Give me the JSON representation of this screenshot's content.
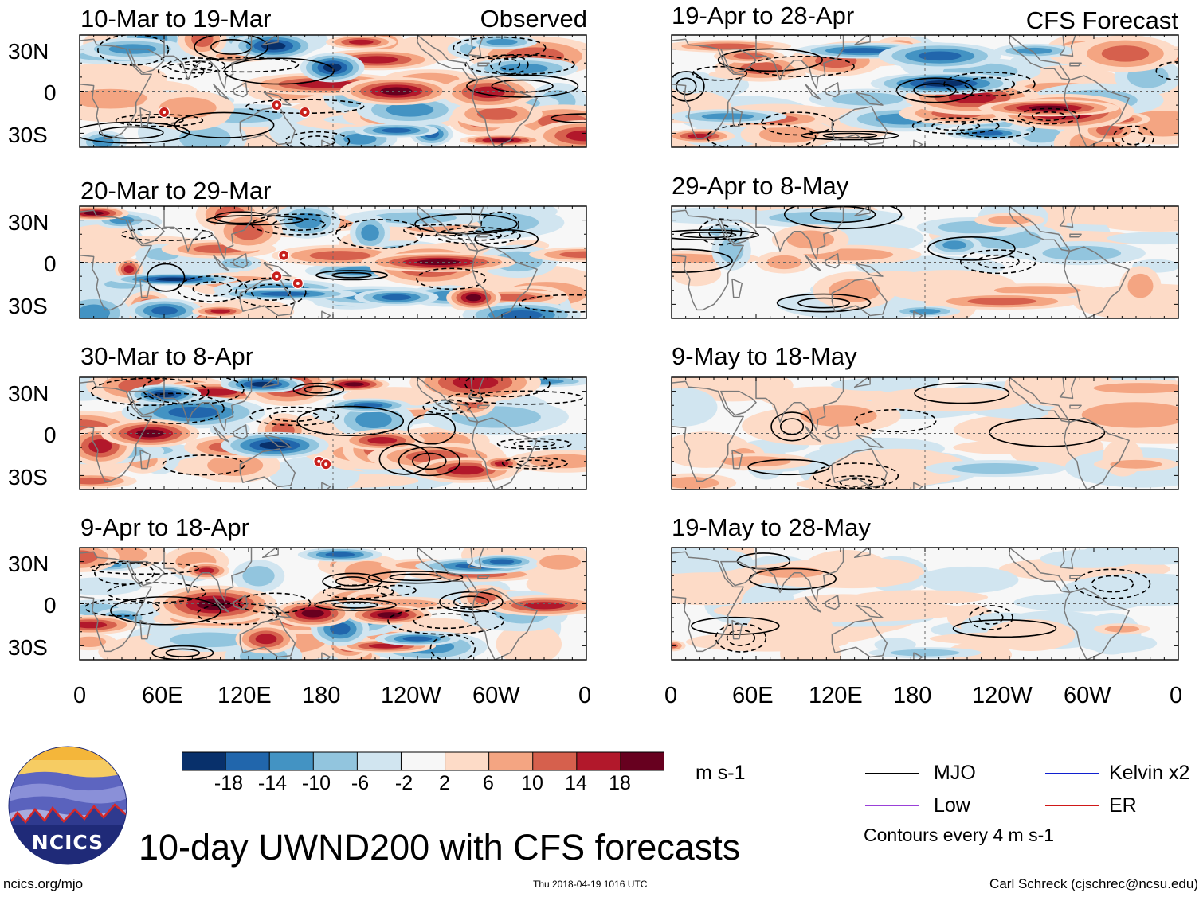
{
  "colors": {
    "scale": [
      "#08306b",
      "#2166ac",
      "#4393c3",
      "#92c5de",
      "#d1e5f0",
      "#f7f7f7",
      "#fddbc7",
      "#f4a582",
      "#d6604d",
      "#b2182b",
      "#67001f"
    ],
    "land_outline": "#7a7a7a",
    "mjo": "#000000",
    "kelvin": "#1020d0",
    "low": "#9a40d8",
    "er": "#d01818"
  },
  "chart_data": {
    "type": "heatmap",
    "title": "10-day UWND200 with CFS forecasts",
    "variable": "200-hPa zonal wind anomaly",
    "units": "m s-1",
    "columns": [
      {
        "id": "observed",
        "header": "Observed",
        "panels": [
          "10-Mar to 19-Mar",
          "20-Mar to 29-Mar",
          "30-Mar to 8-Apr",
          "9-Apr to 18-Apr"
        ]
      },
      {
        "id": "forecast",
        "header": "CFS Forecast",
        "panels": [
          "19-Apr to 28-Apr",
          "29-Apr to 8-May",
          "9-May to 18-May",
          "19-May to 28-May"
        ]
      }
    ],
    "lat_ticks": [
      "30N",
      "0",
      "30S"
    ],
    "lat_range": [
      -40,
      40
    ],
    "lon_ticks": [
      "0",
      "60E",
      "120E",
      "180",
      "120W",
      "60W",
      "0"
    ],
    "lon_range": [
      0,
      360
    ],
    "colorbar": {
      "ticks": [
        "-18",
        "-14",
        "-10",
        "-6",
        "-2",
        "2",
        "6",
        "10",
        "14",
        "18"
      ],
      "units": "m s-1"
    },
    "legend": {
      "items": [
        {
          "label": "MJO",
          "color": "#000000"
        },
        {
          "label": "Kelvin x2",
          "color": "#1020d0"
        },
        {
          "label": "Low",
          "color": "#9a40d8"
        },
        {
          "label": "ER",
          "color": "#d01818"
        }
      ],
      "note": "Contours every 4 m s-1"
    },
    "cyclone_markers": [
      {
        "panel": 0,
        "lon": 60,
        "lat": -15
      },
      {
        "panel": 0,
        "lon": 140,
        "lat": -10
      },
      {
        "panel": 0,
        "lon": 160,
        "lat": -15
      },
      {
        "panel": 1,
        "lon": 145,
        "lat": 5
      },
      {
        "panel": 1,
        "lon": 140,
        "lat": -10
      },
      {
        "panel": 1,
        "lon": 155,
        "lat": -15
      },
      {
        "panel": 2,
        "lon": 170,
        "lat": -20
      },
      {
        "panel": 2,
        "lon": 175,
        "lat": -22
      }
    ]
  },
  "branding": {
    "logo_text": "NCICS",
    "site": "ncics.org/mjo",
    "timestamp": "Thu 2018-04-19 1016 UTC",
    "author": "Carl Schreck (cjschrec@ncsu.edu)"
  }
}
